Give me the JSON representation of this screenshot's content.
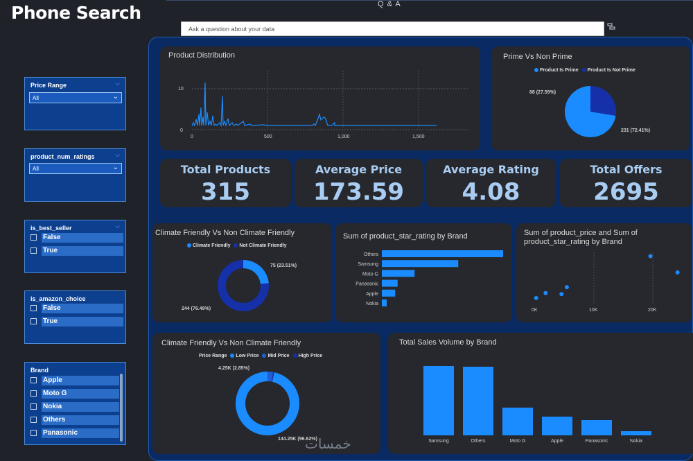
{
  "header": {
    "title": "Phone Search",
    "qa_label": "Q & A",
    "qa_placeholder": "Ask a question about your data"
  },
  "slicers": {
    "price_range": {
      "title": "Price Range",
      "value": "All"
    },
    "num_ratings": {
      "title": "product_num_ratings",
      "value": "All"
    },
    "best_seller": {
      "title": "is_best_seller",
      "options": [
        "False",
        "True"
      ]
    },
    "amazon_choice": {
      "title": "is_amazon_choice",
      "options": [
        "False",
        "True"
      ]
    },
    "brand": {
      "title": "Brand",
      "options": [
        "Apple",
        "Moto G",
        "Nokia",
        "Others",
        "Panasonic"
      ]
    }
  },
  "kpis": [
    {
      "label": "Total Products",
      "value": "315"
    },
    {
      "label": "Average Price",
      "value": "173.59"
    },
    {
      "label": "Average Rating",
      "value": "4.08"
    },
    {
      "label": "Total Offers",
      "value": "2695"
    }
  ],
  "panels": {
    "product_distribution": "Product Distribution",
    "prime": "Prime Vs Non Prime",
    "climate1": "Climate Friendly Vs Non Climate Friendly",
    "star_rating": "Sum of product_star_rating by Brand",
    "price_rating": "Sum of product_price and Sum of product_star_rating by Brand",
    "climate2": "Climate Friendly Vs Non Climate Friendly",
    "sales": "Total Sales Volume by Brand"
  },
  "colors": {
    "accent": "#1a8cff",
    "dark": "#1530a8",
    "mid": "#1f5fd6",
    "panel": "#26282d",
    "bg": "#0a2a63"
  },
  "chart_data": [
    {
      "type": "line",
      "title": "Product Distribution",
      "x_ticks": [
        "0",
        "500",
        "1,000",
        "1,500"
      ],
      "y_ticks": [
        "0",
        "10"
      ],
      "xlim": [
        0,
        1600
      ],
      "ylim": [
        0,
        10
      ]
    },
    {
      "type": "pie",
      "title": "Prime Vs Non Prime",
      "legend": [
        "Product Is Prime",
        "Product Is Not Prime"
      ],
      "slices": [
        {
          "name": "Product Is Prime",
          "value": 231,
          "label": "231 (72.41%)"
        },
        {
          "name": "Product Is Not Prime",
          "value": 88,
          "label": "88 (27.59%)"
        }
      ]
    },
    {
      "type": "pie",
      "title": "Climate Friendly Vs Non Climate Friendly",
      "legend": [
        "Climate Friendly",
        "Not Climate Friendly"
      ],
      "slices": [
        {
          "name": "Climate Friendly",
          "value": 75,
          "label": "75 (23.51%)"
        },
        {
          "name": "Not Climate Friendly",
          "value": 244,
          "label": "244 (76.49%)"
        }
      ]
    },
    {
      "type": "bar",
      "title": "Sum of product_star_rating by Brand",
      "categories": [
        "Others",
        "Samsung",
        "Moto G",
        "Panasonic",
        "Apple",
        "Nokia"
      ],
      "values": [
        100,
        63,
        27,
        13,
        11,
        4
      ]
    },
    {
      "type": "scatter",
      "title": "Sum of product_price and Sum of product_star_rating by Brand",
      "x_ticks": [
        "0K",
        "10K",
        "20K"
      ],
      "xlim": [
        0,
        25000
      ],
      "points": [
        {
          "x": 200,
          "y": 10
        },
        {
          "x": 1800,
          "y": 20
        },
        {
          "x": 4500,
          "y": 18
        },
        {
          "x": 5400,
          "y": 32
        },
        {
          "x": 19600,
          "y": 95
        },
        {
          "x": 24200,
          "y": 62
        }
      ]
    },
    {
      "type": "pie",
      "title": "Climate Friendly Vs Non Climate Friendly",
      "legend_title": "Price Range",
      "legend": [
        "Low Price",
        "Mid Price",
        "High Price"
      ],
      "slices": [
        {
          "name": "Low Price",
          "value": 144.25,
          "label": "144.25K (96.62%)"
        },
        {
          "name": "Mid Price",
          "value": 4.25,
          "label": "4.25K (2.85%)"
        },
        {
          "name": "High Price",
          "value": 0.8,
          "label": ""
        }
      ]
    },
    {
      "type": "bar",
      "title": "Total Sales Volume by Brand",
      "categories": [
        "Samsung",
        "Others",
        "Moto G",
        "Apple",
        "Panasonic",
        "Nokia"
      ],
      "values": [
        100,
        99,
        40,
        27,
        22,
        6
      ]
    }
  ]
}
